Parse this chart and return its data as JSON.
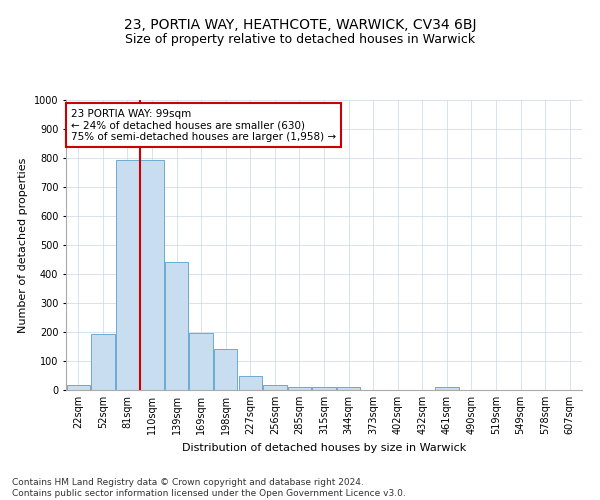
{
  "title": "23, PORTIA WAY, HEATHCOTE, WARWICK, CV34 6BJ",
  "subtitle": "Size of property relative to detached houses in Warwick",
  "xlabel": "Distribution of detached houses by size in Warwick",
  "ylabel": "Number of detached properties",
  "categories": [
    "22sqm",
    "52sqm",
    "81sqm",
    "110sqm",
    "139sqm",
    "169sqm",
    "198sqm",
    "227sqm",
    "256sqm",
    "285sqm",
    "315sqm",
    "344sqm",
    "373sqm",
    "402sqm",
    "432sqm",
    "461sqm",
    "490sqm",
    "519sqm",
    "549sqm",
    "578sqm",
    "607sqm"
  ],
  "values": [
    18,
    193,
    793,
    793,
    440,
    197,
    140,
    50,
    18,
    12,
    12,
    12,
    0,
    0,
    0,
    10,
    0,
    0,
    0,
    0,
    0
  ],
  "bar_color": "#c9ddf0",
  "bar_edge_color": "#6aaad4",
  "vline_color": "#cc0000",
  "annotation_text": "23 PORTIA WAY: 99sqm\n← 24% of detached houses are smaller (630)\n75% of semi-detached houses are larger (1,958) →",
  "annotation_box_color": "#ffffff",
  "annotation_box_edge_color": "#cc0000",
  "ylim": [
    0,
    1000
  ],
  "yticks": [
    0,
    100,
    200,
    300,
    400,
    500,
    600,
    700,
    800,
    900,
    1000
  ],
  "background_color": "#ffffff",
  "grid_color": "#c8d8e8",
  "footer_line1": "Contains HM Land Registry data © Crown copyright and database right 2024.",
  "footer_line2": "Contains public sector information licensed under the Open Government Licence v3.0.",
  "title_fontsize": 10,
  "subtitle_fontsize": 9,
  "axis_label_fontsize": 8,
  "tick_fontsize": 7,
  "annotation_fontsize": 7.5,
  "footer_fontsize": 6.5
}
